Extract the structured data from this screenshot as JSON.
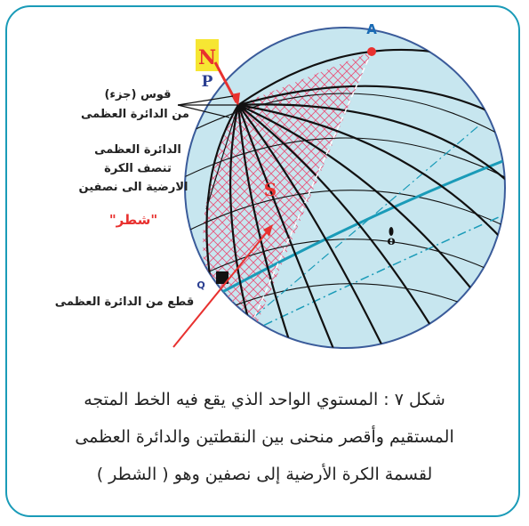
{
  "labels": {
    "A": "A",
    "N": "N",
    "P": "P",
    "S": "S",
    "Q": "Q",
    "o": "o"
  },
  "annotations": {
    "arc_line1": "قوس (جزء)",
    "arc_line2": "من الدائرة العظمى",
    "great_circle_line1": "الدائرة العظمى",
    "great_circle_line2": "تنصف الكرة",
    "great_circle_line3": "الارضية الى نصفين",
    "hemisphere": "\"شطر\"",
    "section": "قطع من الدائرة العظمى"
  },
  "caption": {
    "line1": "شكل ٧ : المستوي الواحد الذي يقع فيه الخط المتجه",
    "line2": "المستقيم وأقصر منحنى بين النقطتين والدائرة العظمى",
    "line3": "لقسمة الكرة الأرضية إلى نصفين وهو ( الشطر )"
  },
  "colors": {
    "border": "#1a9bb8",
    "sphere_fill": "#c7e6ef",
    "meridian": "#111111",
    "hatch": "#e8557a",
    "arrow": "#e8312f",
    "label_box": "#f6e633",
    "equator": "#1a9bb8"
  }
}
